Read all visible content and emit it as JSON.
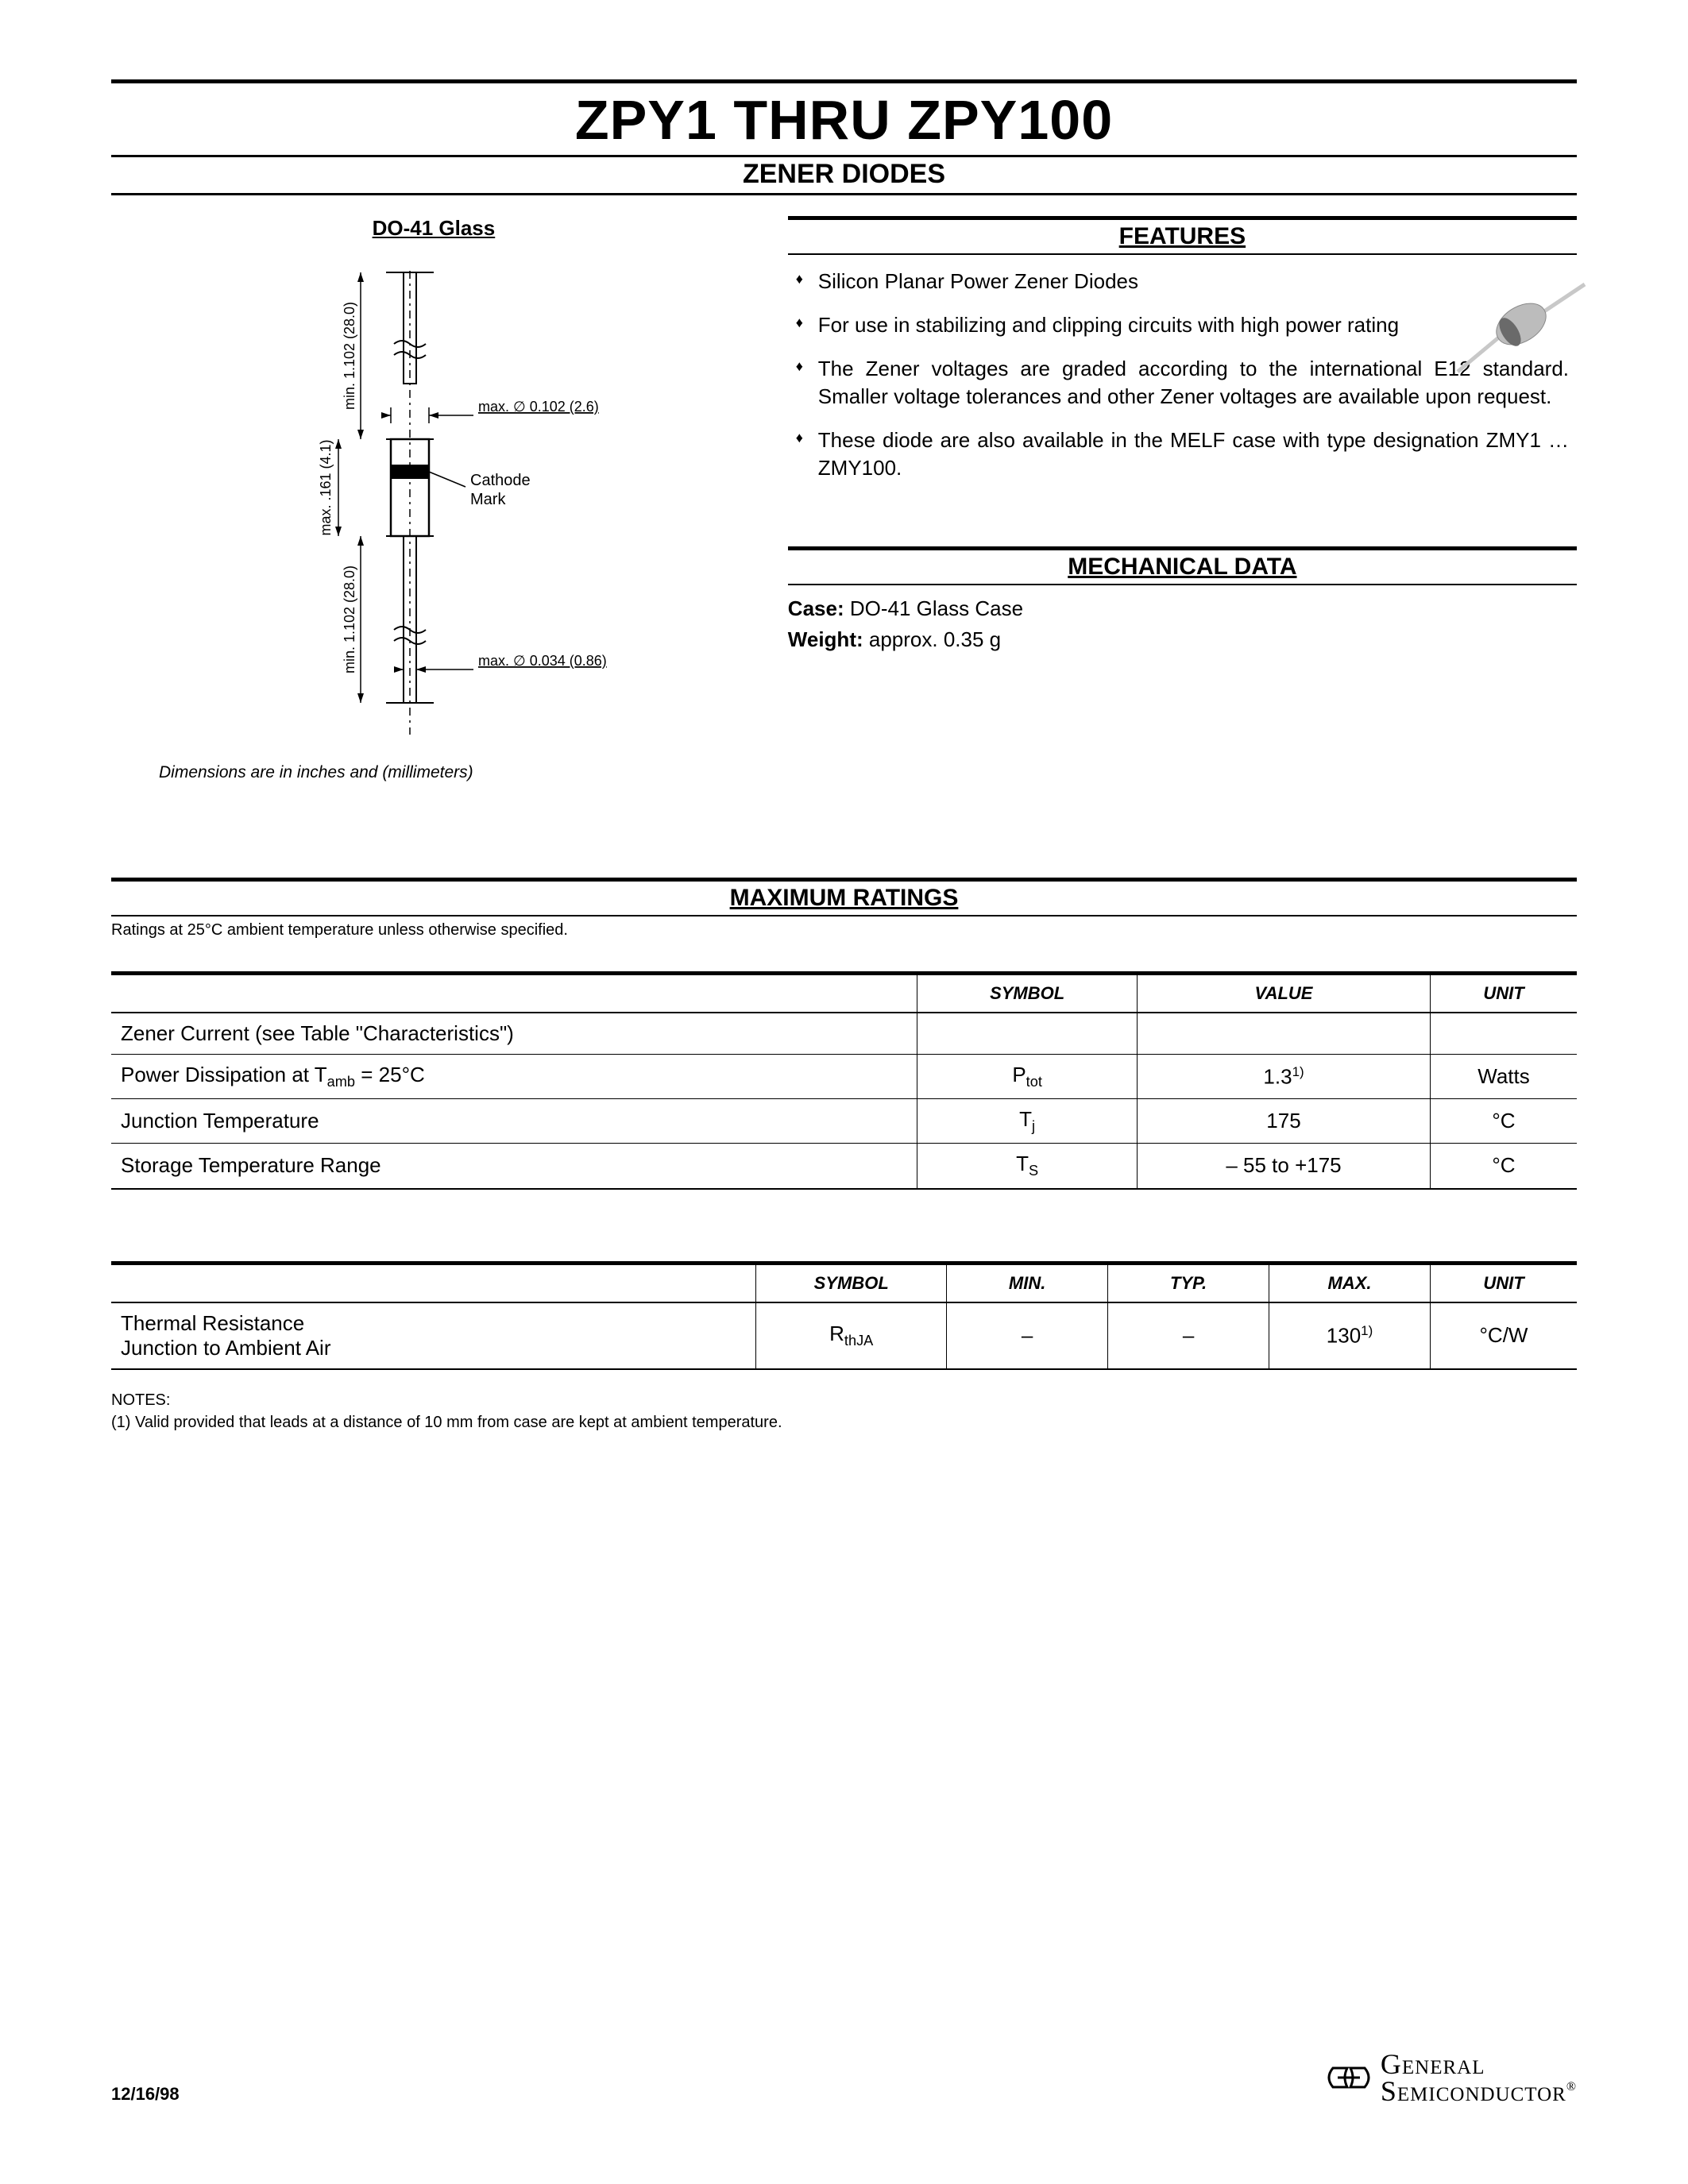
{
  "header": {
    "title": "ZPY1 THRU ZPY100",
    "subtitle": "ZENER DIODES"
  },
  "package": {
    "title": "DO-41 Glass",
    "dim_note": "Dimensions are in inches and (millimeters)",
    "lead_length": "min. 1.102 (28.0)",
    "body_length": "max. .161 (4.1)",
    "body_dia": "max. ∅ 0.102 (2.6)",
    "lead_dia": "max. ∅ 0.034 (0.86)",
    "cathode_label": "Cathode\nMark"
  },
  "features": {
    "heading": "FEATURES",
    "items": [
      "Silicon Planar Power Zener Diodes",
      "For use in stabilizing and clipping circuits with high power rating",
      "The Zener voltages are graded according to the international E12 standard. Smaller voltage tolerances and other Zener voltages are available upon request.",
      "These diode are also available in the MELF case with type designation ZMY1 … ZMY100."
    ]
  },
  "mechanical": {
    "heading": "MECHANICAL DATA",
    "case_label": "Case:",
    "case_value": "DO-41 Glass Case",
    "weight_label": "Weight:",
    "weight_value": "approx. 0.35 g"
  },
  "max_ratings": {
    "heading": "MAXIMUM RATINGS",
    "note": "Ratings at 25°C ambient temperature unless otherwise specified.",
    "columns": [
      "",
      "SYMBOL",
      "VALUE",
      "UNIT"
    ],
    "col_widths": [
      "55%",
      "15%",
      "20%",
      "10%"
    ],
    "rows": [
      {
        "param": "Zener Current (see Table \"Characteristics\")",
        "symbol": "",
        "value": "",
        "unit": ""
      },
      {
        "param_html": "Power Dissipation at T<sub>amb</sub> = 25°C",
        "symbol_html": "P<sub>tot</sub>",
        "value_html": "1.3<sup>1)</sup>",
        "unit": "Watts"
      },
      {
        "param": "Junction Temperature",
        "symbol_html": "T<sub>j</sub>",
        "value": "175",
        "unit": "°C"
      },
      {
        "param": "Storage Temperature Range",
        "symbol_html": "T<sub>S</sub>",
        "value": "– 55 to +175",
        "unit": "°C"
      }
    ]
  },
  "thermal": {
    "columns": [
      "",
      "SYMBOL",
      "MIN.",
      "TYP.",
      "MAX.",
      "UNIT"
    ],
    "col_widths": [
      "44%",
      "13%",
      "11%",
      "11%",
      "11%",
      "10%"
    ],
    "rows": [
      {
        "param_html": "Thermal Resistance<br>Junction to Ambient Air",
        "symbol_html": "R<sub>thJA</sub>",
        "min": "–",
        "typ": "–",
        "max_html": "130<sup>1)</sup>",
        "unit": "°C/W"
      }
    ]
  },
  "notes": {
    "label": "NOTES:",
    "items": [
      "(1) Valid provided that leads at a distance of 10 mm from case are kept at ambient temperature."
    ]
  },
  "footer": {
    "date": "12/16/98",
    "logo_line1": "General",
    "logo_line2": "Semiconductor"
  },
  "colors": {
    "text": "#000000",
    "bg": "#ffffff",
    "diagram_stroke": "#000000",
    "component_body": "#b8b8b8",
    "component_lead": "#d4d4d4"
  }
}
